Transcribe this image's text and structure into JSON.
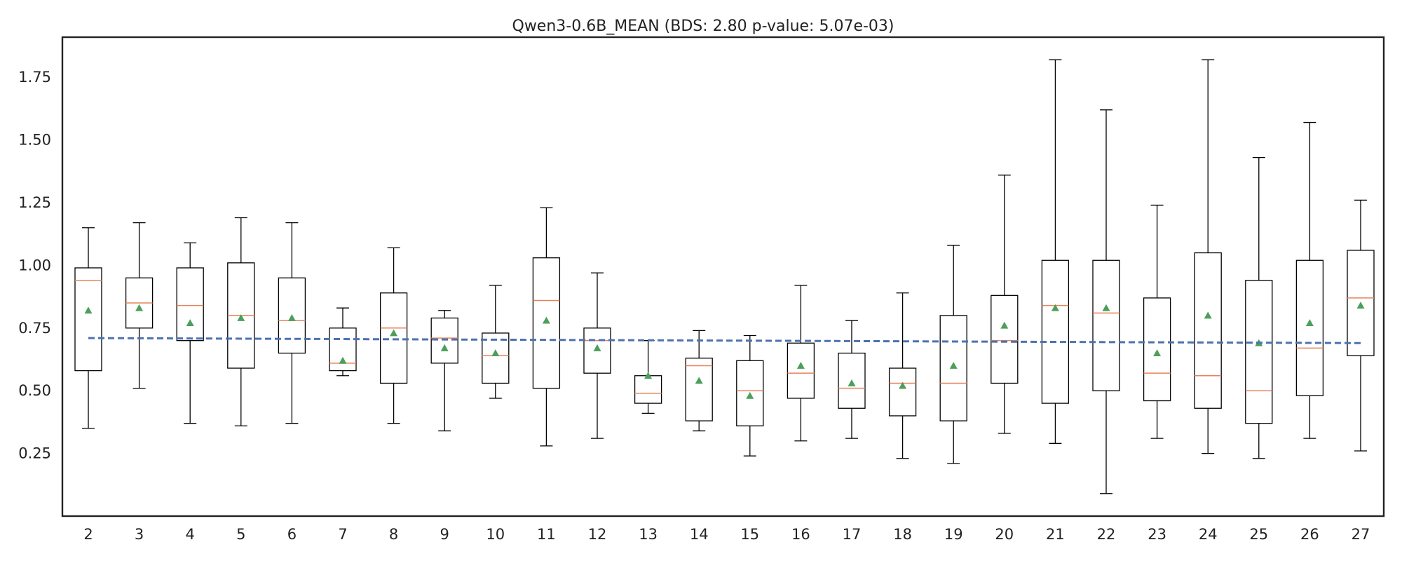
{
  "chart_data": {
    "type": "box",
    "title": "Qwen3-0.6B_MEAN (BDS: 2.80 p-value: 5.07e-03)",
    "xlabel": "",
    "ylabel": "",
    "categories": [
      "2",
      "3",
      "4",
      "5",
      "6",
      "7",
      "8",
      "9",
      "10",
      "11",
      "12",
      "13",
      "14",
      "15",
      "16",
      "17",
      "18",
      "19",
      "20",
      "21",
      "22",
      "23",
      "24",
      "25",
      "26",
      "27"
    ],
    "ylim": [
      0.0,
      1.91
    ],
    "y_ticks": [
      0.25,
      0.5,
      0.75,
      1.0,
      1.25,
      1.5,
      1.75
    ],
    "y_tick_labels": [
      "0.25",
      "0.50",
      "0.75",
      "1.00",
      "1.25",
      "1.50",
      "1.75"
    ],
    "grid": false,
    "boxes": [
      {
        "category": "2",
        "whisker_low": 0.35,
        "q1": 0.58,
        "median": 0.94,
        "q3": 0.99,
        "whisker_high": 1.15,
        "mean": 0.82
      },
      {
        "category": "3",
        "whisker_low": 0.51,
        "q1": 0.75,
        "median": 0.85,
        "q3": 0.95,
        "whisker_high": 1.17,
        "mean": 0.83
      },
      {
        "category": "4",
        "whisker_low": 0.37,
        "q1": 0.7,
        "median": 0.84,
        "q3": 0.99,
        "whisker_high": 1.09,
        "mean": 0.77
      },
      {
        "category": "5",
        "whisker_low": 0.36,
        "q1": 0.59,
        "median": 0.8,
        "q3": 1.01,
        "whisker_high": 1.19,
        "mean": 0.79
      },
      {
        "category": "6",
        "whisker_low": 0.37,
        "q1": 0.65,
        "median": 0.78,
        "q3": 0.95,
        "whisker_high": 1.17,
        "mean": 0.79
      },
      {
        "category": "7",
        "whisker_low": 0.56,
        "q1": 0.58,
        "median": 0.61,
        "q3": 0.75,
        "whisker_high": 0.83,
        "mean": 0.62
      },
      {
        "category": "8",
        "whisker_low": 0.37,
        "q1": 0.53,
        "median": 0.75,
        "q3": 0.89,
        "whisker_high": 1.07,
        "mean": 0.73
      },
      {
        "category": "9",
        "whisker_low": 0.34,
        "q1": 0.61,
        "median": 0.71,
        "q3": 0.79,
        "whisker_high": 0.82,
        "mean": 0.67
      },
      {
        "category": "10",
        "whisker_low": 0.47,
        "q1": 0.53,
        "median": 0.64,
        "q3": 0.73,
        "whisker_high": 0.92,
        "mean": 0.65
      },
      {
        "category": "11",
        "whisker_low": 0.28,
        "q1": 0.51,
        "median": 0.86,
        "q3": 1.03,
        "whisker_high": 1.23,
        "mean": 0.78
      },
      {
        "category": "12",
        "whisker_low": 0.31,
        "q1": 0.57,
        "median": 0.7,
        "q3": 0.75,
        "whisker_high": 0.97,
        "mean": 0.67
      },
      {
        "category": "13",
        "whisker_low": 0.41,
        "q1": 0.45,
        "median": 0.49,
        "q3": 0.56,
        "whisker_high": 0.7,
        "mean": 0.56
      },
      {
        "category": "14",
        "whisker_low": 0.34,
        "q1": 0.38,
        "median": 0.6,
        "q3": 0.63,
        "whisker_high": 0.74,
        "mean": 0.54
      },
      {
        "category": "15",
        "whisker_low": 0.24,
        "q1": 0.36,
        "median": 0.5,
        "q3": 0.62,
        "whisker_high": 0.72,
        "mean": 0.48
      },
      {
        "category": "16",
        "whisker_low": 0.3,
        "q1": 0.47,
        "median": 0.57,
        "q3": 0.69,
        "whisker_high": 0.92,
        "mean": 0.6
      },
      {
        "category": "17",
        "whisker_low": 0.31,
        "q1": 0.43,
        "median": 0.51,
        "q3": 0.65,
        "whisker_high": 0.78,
        "mean": 0.53
      },
      {
        "category": "18",
        "whisker_low": 0.23,
        "q1": 0.4,
        "median": 0.53,
        "q3": 0.59,
        "whisker_high": 0.89,
        "mean": 0.52
      },
      {
        "category": "19",
        "whisker_low": 0.21,
        "q1": 0.38,
        "median": 0.53,
        "q3": 0.8,
        "whisker_high": 1.08,
        "mean": 0.6
      },
      {
        "category": "20",
        "whisker_low": 0.33,
        "q1": 0.53,
        "median": 0.7,
        "q3": 0.88,
        "whisker_high": 1.36,
        "mean": 0.76
      },
      {
        "category": "21",
        "whisker_low": 0.29,
        "q1": 0.45,
        "median": 0.84,
        "q3": 1.02,
        "whisker_high": 1.82,
        "mean": 0.83
      },
      {
        "category": "22",
        "whisker_low": 0.09,
        "q1": 0.5,
        "median": 0.81,
        "q3": 1.02,
        "whisker_high": 1.62,
        "mean": 0.83
      },
      {
        "category": "23",
        "whisker_low": 0.31,
        "q1": 0.46,
        "median": 0.57,
        "q3": 0.87,
        "whisker_high": 1.24,
        "mean": 0.65
      },
      {
        "category": "24",
        "whisker_low": 0.25,
        "q1": 0.43,
        "median": 0.56,
        "q3": 1.05,
        "whisker_high": 1.82,
        "mean": 0.8
      },
      {
        "category": "25",
        "whisker_low": 0.23,
        "q1": 0.37,
        "median": 0.5,
        "q3": 0.94,
        "whisker_high": 1.43,
        "mean": 0.69
      },
      {
        "category": "26",
        "whisker_low": 0.31,
        "q1": 0.48,
        "median": 0.67,
        "q3": 1.02,
        "whisker_high": 1.57,
        "mean": 0.77
      },
      {
        "category": "27",
        "whisker_low": 0.26,
        "q1": 0.64,
        "median": 0.87,
        "q3": 1.06,
        "whisker_high": 1.26,
        "mean": 0.84
      }
    ],
    "trend_line": {
      "x": [
        "2",
        "27"
      ],
      "y": [
        0.71,
        0.69
      ],
      "style": "dashed"
    },
    "colors": {
      "box_edge": "#000000",
      "median": "#e8825a",
      "mean_marker": "#4c9f5b",
      "trend": "#4c72b0",
      "axes": "#222222"
    }
  }
}
